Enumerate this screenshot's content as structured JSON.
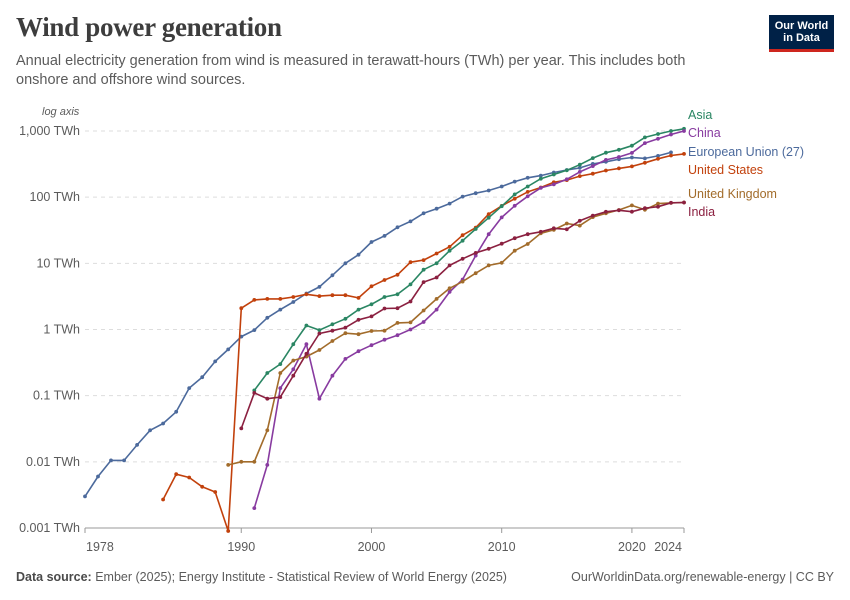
{
  "header": {
    "title": "Wind power generation",
    "subtitle": "Annual electricity generation from wind is measured in terawatt-hours (TWh) per year. This includes both onshore and offshore wind sources.",
    "logo_line1": "Our World",
    "logo_line2": "in Data"
  },
  "footer": {
    "source_label": "Data source:",
    "source_text": "Ember (2025); Energy Institute - Statistical Review of World Energy (2025)",
    "link": "OurWorldinData.org/renewable-energy | CC BY"
  },
  "chart_data": {
    "type": "line",
    "axis_note": "log axis",
    "y_scale": "log",
    "ylim": [
      0.001,
      1000
    ],
    "yticks": [
      {
        "value": 0.001,
        "label": "0.001 TWh"
      },
      {
        "value": 0.01,
        "label": "0.01 TWh"
      },
      {
        "value": 0.1,
        "label": "0.1 TWh"
      },
      {
        "value": 1,
        "label": "1 TWh"
      },
      {
        "value": 10,
        "label": "10 TWh"
      },
      {
        "value": 100,
        "label": "100 TWh"
      },
      {
        "value": 1000,
        "label": "1,000 TWh"
      }
    ],
    "xlim": [
      1978,
      2024
    ],
    "xticks": [
      {
        "value": 1978,
        "label": "1978"
      },
      {
        "value": 1990,
        "label": "1990"
      },
      {
        "value": 2000,
        "label": "2000"
      },
      {
        "value": 2010,
        "label": "2010"
      },
      {
        "value": 2020,
        "label": "2020"
      },
      {
        "value": 2024,
        "label": "2024"
      }
    ],
    "grid": "horizontal dashed",
    "legend": "right, labels at line ends",
    "series": [
      {
        "name": "European Union (27)",
        "color": "#4c6a9c",
        "x": [
          1978,
          1979,
          1980,
          1981,
          1982,
          1983,
          1984,
          1985,
          1986,
          1987,
          1988,
          1989,
          1990,
          1991,
          1992,
          1993,
          1994,
          1995,
          1996,
          1997,
          1998,
          1999,
          2000,
          2001,
          2002,
          2003,
          2004,
          2005,
          2006,
          2007,
          2008,
          2009,
          2010,
          2011,
          2012,
          2013,
          2014,
          2015,
          2016,
          2017,
          2018,
          2019,
          2020,
          2021,
          2022,
          2023
        ],
        "y": [
          0.003,
          0.006,
          0.0105,
          0.0105,
          0.018,
          0.03,
          0.038,
          0.057,
          0.13,
          0.19,
          0.33,
          0.5,
          0.78,
          0.98,
          1.5,
          2.0,
          2.6,
          3.5,
          4.4,
          6.6,
          10.0,
          13.5,
          21,
          26,
          35,
          43,
          57,
          67,
          80,
          102,
          115,
          126,
          145,
          172,
          196,
          212,
          236,
          257,
          277,
          318,
          342,
          375,
          397,
          386,
          420,
          475
        ]
      },
      {
        "name": "United States",
        "color": "#c2410c",
        "x": [
          1984,
          1985,
          1986,
          1987,
          1988,
          1989,
          1990,
          1991,
          1992,
          1993,
          1994,
          1995,
          1996,
          1997,
          1998,
          1999,
          2000,
          2001,
          2002,
          2003,
          2004,
          2005,
          2006,
          2007,
          2008,
          2009,
          2010,
          2011,
          2012,
          2013,
          2014,
          2015,
          2016,
          2017,
          2018,
          2019,
          2020,
          2021,
          2022,
          2023,
          2024
        ],
        "y": [
          0.0027,
          0.0065,
          0.0058,
          0.0042,
          0.0035,
          0.0009,
          2.1,
          2.8,
          2.9,
          2.9,
          3.1,
          3.4,
          3.2,
          3.3,
          3.3,
          3.0,
          4.5,
          5.6,
          6.7,
          10.4,
          11.2,
          14.1,
          17.8,
          26.6,
          34.5,
          55.4,
          73.9,
          94.7,
          120,
          140,
          168,
          181,
          208,
          226,
          253,
          272,
          292,
          331,
          380,
          427,
          450
        ]
      },
      {
        "name": "Asia",
        "color": "#2a8663",
        "x": [
          1991,
          1992,
          1993,
          1994,
          1995,
          1996,
          1997,
          1998,
          1999,
          2000,
          2001,
          2002,
          2003,
          2004,
          2005,
          2006,
          2007,
          2008,
          2009,
          2010,
          2011,
          2012,
          2013,
          2014,
          2015,
          2016,
          2017,
          2018,
          2019,
          2020,
          2021,
          2022,
          2023,
          2024
        ],
        "y": [
          0.12,
          0.22,
          0.3,
          0.6,
          1.15,
          0.98,
          1.2,
          1.45,
          2.0,
          2.4,
          3.1,
          3.4,
          4.8,
          8.0,
          10.0,
          15.5,
          22,
          33,
          49,
          73,
          110,
          145,
          190,
          220,
          255,
          310,
          390,
          470,
          520,
          600,
          800,
          900,
          1000,
          1080
        ]
      },
      {
        "name": "China",
        "color": "#883ba0",
        "x": [
          1991,
          1992,
          1993,
          1994,
          1995,
          1996,
          1997,
          1998,
          1999,
          2000,
          2001,
          2002,
          2003,
          2004,
          2005,
          2006,
          2007,
          2008,
          2009,
          2010,
          2011,
          2012,
          2013,
          2014,
          2015,
          2016,
          2017,
          2018,
          2019,
          2020,
          2021,
          2022,
          2023,
          2024
        ],
        "y": [
          0.002,
          0.009,
          0.13,
          0.25,
          0.6,
          0.09,
          0.2,
          0.36,
          0.47,
          0.58,
          0.7,
          0.82,
          1.0,
          1.3,
          2.0,
          3.7,
          5.7,
          13.1,
          27.6,
          49.4,
          74.1,
          103,
          138,
          156,
          186,
          241,
          295,
          366,
          405,
          467,
          656,
          762,
          886,
          1000
        ]
      },
      {
        "name": "United Kingdom",
        "color": "#a26c2b",
        "x": [
          1989,
          1990,
          1991,
          1992,
          1993,
          1994,
          1995,
          1996,
          1997,
          1998,
          1999,
          2000,
          2001,
          2002,
          2003,
          2004,
          2005,
          2006,
          2007,
          2008,
          2009,
          2010,
          2011,
          2012,
          2013,
          2014,
          2015,
          2016,
          2017,
          2018,
          2019,
          2020,
          2021,
          2022,
          2023,
          2024
        ],
        "y": [
          0.009,
          0.01,
          0.01,
          0.03,
          0.22,
          0.34,
          0.39,
          0.49,
          0.67,
          0.88,
          0.85,
          0.95,
          0.96,
          1.26,
          1.28,
          1.94,
          2.9,
          4.2,
          5.3,
          7.1,
          9.3,
          10.2,
          15.5,
          19.6,
          28.4,
          32,
          40,
          37.2,
          50,
          57,
          64,
          75,
          64.5,
          80,
          82,
          83
        ]
      },
      {
        "name": "India",
        "color": "#8b2040",
        "x": [
          1990,
          1991,
          1992,
          1993,
          1994,
          1995,
          1996,
          1997,
          1998,
          1999,
          2000,
          2001,
          2002,
          2003,
          2004,
          2005,
          2006,
          2007,
          2008,
          2009,
          2010,
          2011,
          2012,
          2013,
          2014,
          2015,
          2016,
          2017,
          2018,
          2019,
          2020,
          2021,
          2022,
          2023,
          2024
        ],
        "y": [
          0.032,
          0.11,
          0.09,
          0.095,
          0.2,
          0.43,
          0.87,
          0.96,
          1.07,
          1.4,
          1.58,
          2.08,
          2.1,
          2.65,
          5.2,
          6.1,
          9.3,
          11.7,
          14.4,
          16.6,
          19.8,
          24,
          27.6,
          30,
          33.8,
          32.7,
          43.9,
          52.6,
          60,
          63.3,
          60.4,
          68.1,
          71.8,
          82.1,
          83
        ]
      }
    ],
    "labels": [
      {
        "name": "Asia",
        "color": "#2a8663"
      },
      {
        "name": "China",
        "color": "#883ba0"
      },
      {
        "name": "European Union (27)",
        "color": "#4c6a9c"
      },
      {
        "name": "United States",
        "color": "#c2410c"
      },
      {
        "name": "United Kingdom",
        "color": "#a26c2b"
      },
      {
        "name": "India",
        "color": "#8b2040"
      }
    ]
  }
}
